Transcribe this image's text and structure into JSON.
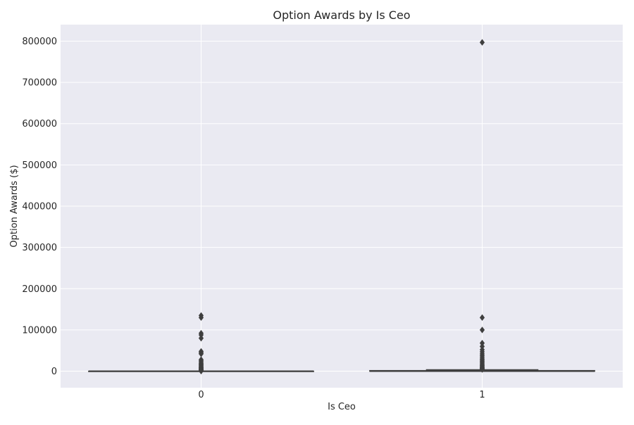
{
  "chart_data": {
    "type": "box",
    "title": "Option Awards by Is Ceo",
    "xlabel": "Is Ceo",
    "ylabel": "Option Awards ($)",
    "categories": [
      "0",
      "1"
    ],
    "ylim": [
      -40000,
      840000
    ],
    "yticks": [
      0,
      100000,
      200000,
      300000,
      400000,
      500000,
      600000,
      700000,
      800000
    ],
    "ytick_labels": [
      "0",
      "100000",
      "200000",
      "300000",
      "400000",
      "500000",
      "600000",
      "700000",
      "800000"
    ],
    "grid": true,
    "legend": "none",
    "boxes": [
      {
        "category": "0",
        "q1": 0,
        "median": 0,
        "q3": 0,
        "whisker_low": 0,
        "whisker_high": 0,
        "outliers": [
          135000,
          130000,
          92000,
          88000,
          80000,
          48000,
          45000,
          42000,
          28000,
          25000,
          22000,
          19000,
          17000,
          15000,
          13000,
          11000,
          9500,
          8000,
          6500,
          5500,
          4500,
          3500,
          2500,
          1500,
          1000,
          700,
          400
        ]
      },
      {
        "category": "1",
        "q1": 0,
        "median": 0,
        "q3": 1500,
        "whisker_low": 0,
        "whisker_high": 3500,
        "outliers": [
          797000,
          130000,
          100000,
          68000,
          60000,
          52000,
          47000,
          42000,
          38000,
          34000,
          30000,
          27000,
          24000,
          21000,
          18000,
          15000,
          13000,
          11000,
          9000,
          7500,
          6000,
          5000,
          4200
        ]
      }
    ],
    "colors": {
      "background": "#eaeaf2",
      "grid": "#ffffff",
      "box_edge": "#3f3f3f",
      "box_fill": "#eaeaf2",
      "outlier": "#3f3f3f"
    }
  }
}
